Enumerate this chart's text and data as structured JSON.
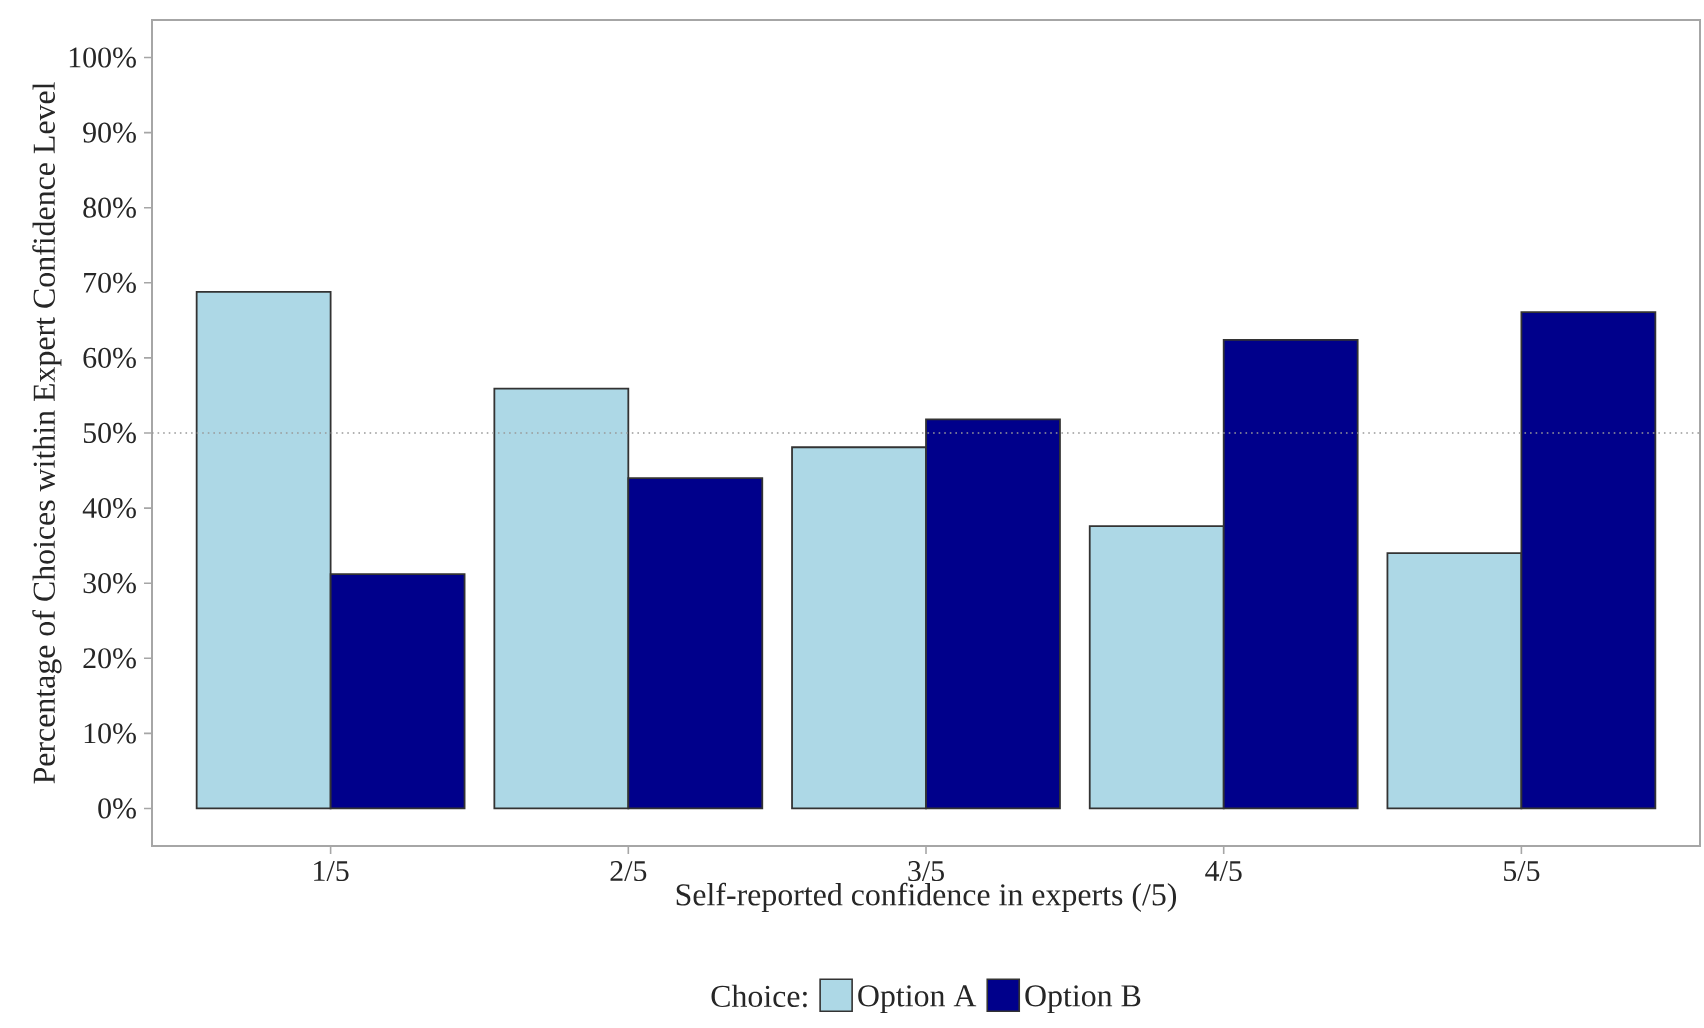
{
  "chart_data": {
    "type": "bar",
    "xlabel": "Self-reported confidence in experts (/5)",
    "ylabel": "Percentage of Choices within Expert Confidence Level",
    "legend_title": "Choice:",
    "categories": [
      "1/5",
      "2/5",
      "3/5",
      "4/5",
      "5/5"
    ],
    "series": [
      {
        "name": "Option A",
        "color": "#add8e6",
        "values": [
          68.8,
          55.9,
          48.1,
          37.6,
          34.0
        ]
      },
      {
        "name": "Option B",
        "color": "#00008b",
        "values": [
          31.2,
          44.0,
          51.8,
          62.4,
          66.1
        ]
      }
    ],
    "ylim": [
      -5,
      105
    ],
    "yticks": [
      {
        "value": 0,
        "label": "0%"
      },
      {
        "value": 10,
        "label": "10%"
      },
      {
        "value": 20,
        "label": "20%"
      },
      {
        "value": 30,
        "label": "30%"
      },
      {
        "value": 40,
        "label": "40%"
      },
      {
        "value": 50,
        "label": "50%"
      },
      {
        "value": 60,
        "label": "60%"
      },
      {
        "value": 70,
        "label": "70%"
      },
      {
        "value": 80,
        "label": "80%"
      },
      {
        "value": 90,
        "label": "90%"
      },
      {
        "value": 100,
        "label": "100%"
      }
    ],
    "ref_lines": [
      {
        "axis": "y",
        "value": 50,
        "color": "#999999",
        "line_style": "dotted"
      }
    ],
    "grid": false,
    "legend": "bottom"
  }
}
